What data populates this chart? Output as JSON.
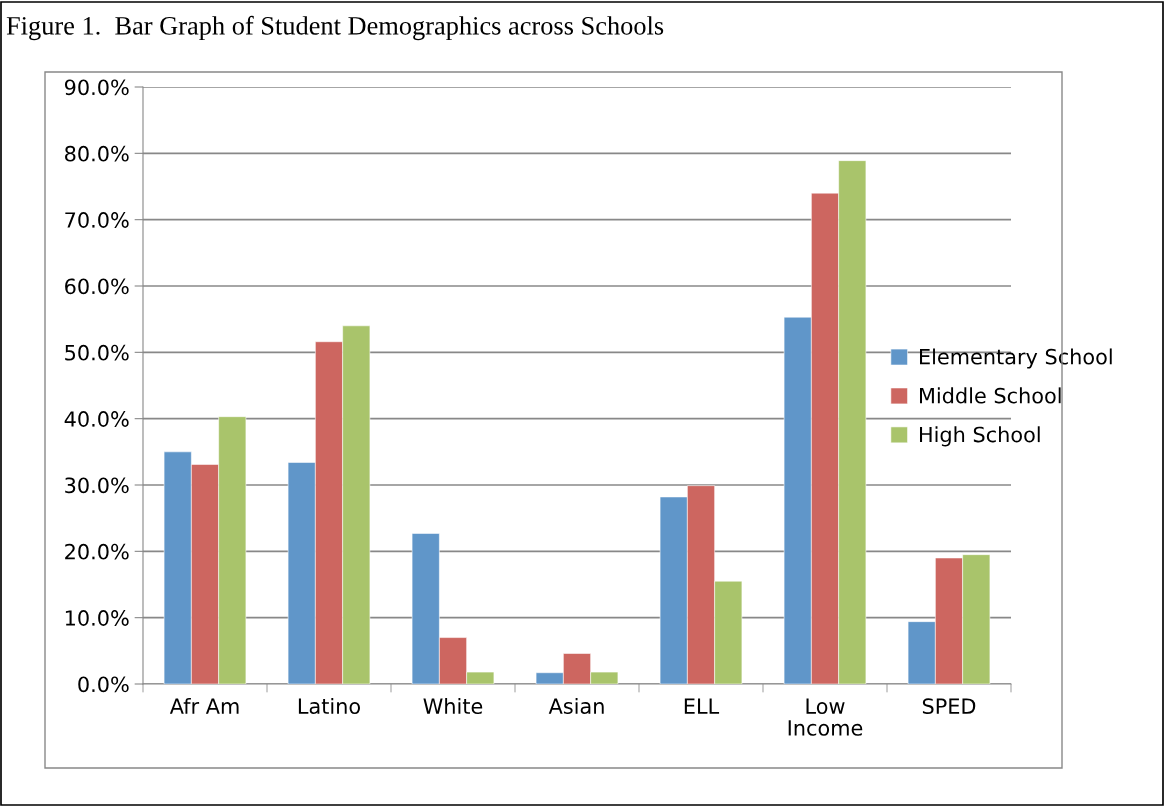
{
  "chart_data": {
    "type": "bar",
    "title": "Figure 1.  Bar Graph of Student Demographics across Schools",
    "categories": [
      "Afr Am",
      "Latino",
      "White",
      "Asian",
      "ELL",
      "Low\nIncome",
      "SPED"
    ],
    "series": [
      {
        "name": "Elementary School",
        "color": "#6096c9",
        "values": [
          35.0,
          33.4,
          22.7,
          1.7,
          28.2,
          55.3,
          9.4
        ]
      },
      {
        "name": "Middle School",
        "color": "#cd6660",
        "values": [
          33.1,
          51.6,
          7.0,
          4.6,
          29.9,
          74.0,
          19.0
        ]
      },
      {
        "name": "High School",
        "color": "#a9c46b",
        "values": [
          40.3,
          54.0,
          1.8,
          1.8,
          15.5,
          78.9,
          19.5
        ]
      }
    ],
    "ylim": [
      0,
      90
    ],
    "yticks": [
      {
        "value": 0,
        "label": "0.0%"
      },
      {
        "value": 10,
        "label": "10.0%"
      },
      {
        "value": 20,
        "label": "20.0%"
      },
      {
        "value": 30,
        "label": "30.0%"
      },
      {
        "value": 40,
        "label": "40.0%"
      },
      {
        "value": 50,
        "label": "50.0%"
      },
      {
        "value": 60,
        "label": "60.0%"
      },
      {
        "value": 70,
        "label": "70.0%"
      },
      {
        "value": 80,
        "label": "80.0%"
      },
      {
        "value": 90,
        "label": "90.0%"
      }
    ],
    "grid": "y",
    "legend": "right"
  }
}
